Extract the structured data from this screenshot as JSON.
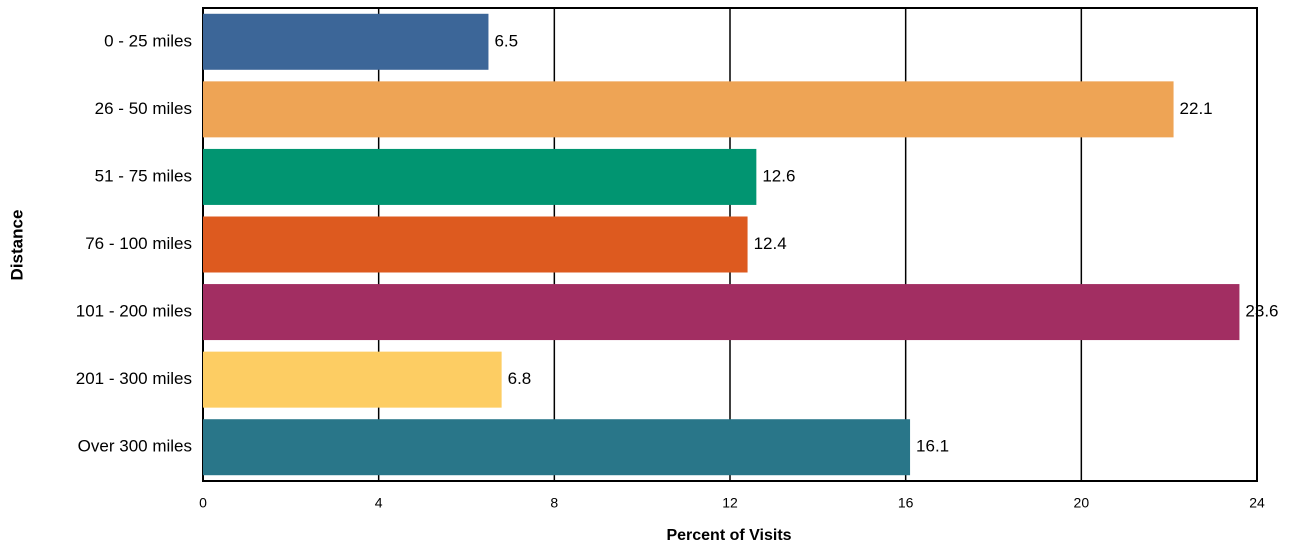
{
  "chart_data": {
    "type": "bar",
    "orientation": "horizontal",
    "x_label": "Percent of Visits",
    "y_label": "Distance",
    "categories": [
      "0 - 25 miles",
      "26 - 50 miles",
      "51 - 75 miles",
      "76 - 100 miles",
      "101 - 200 miles",
      "201 - 300 miles",
      "Over 300 miles"
    ],
    "values": [
      6.5,
      22.1,
      12.6,
      12.4,
      23.6,
      6.8,
      16.1
    ],
    "colors": [
      "#3c6698",
      "#eea455",
      "#019571",
      "#dd5a1f",
      "#a22e62",
      "#fdcd63",
      "#297689"
    ],
    "xlim": [
      0,
      24
    ],
    "xticks": [
      0,
      4,
      8,
      12,
      16,
      20,
      24
    ],
    "grid": true
  }
}
